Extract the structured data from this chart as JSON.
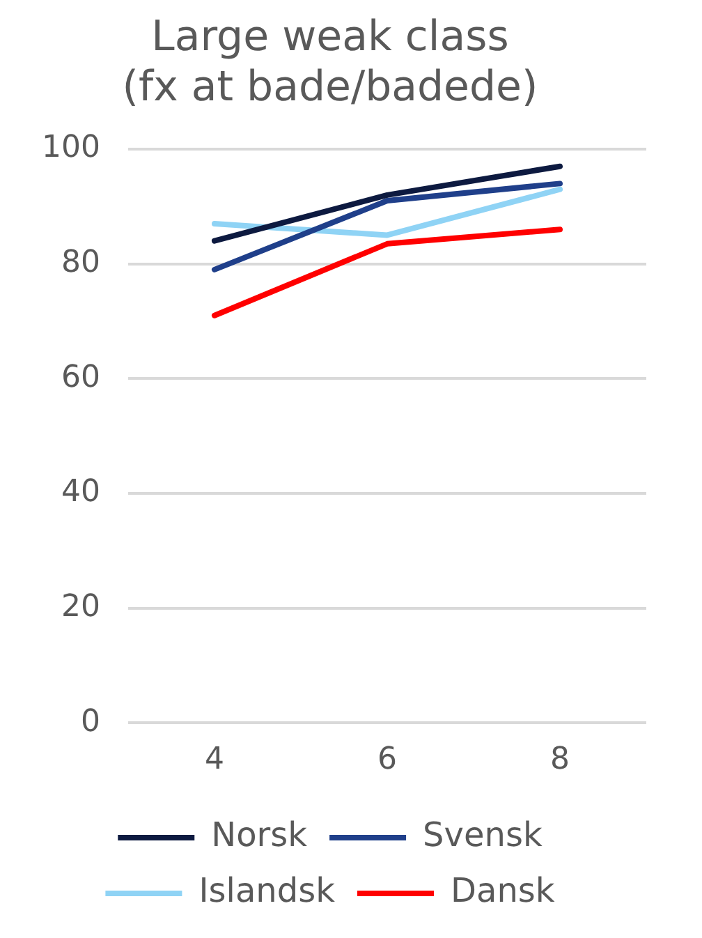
{
  "chart_data": {
    "type": "line",
    "title": [
      "Large weak class",
      "(fx at bade/badede)"
    ],
    "categories": [
      "4",
      "6",
      "8"
    ],
    "series": [
      {
        "name": "Norsk",
        "color": "#0d1a40",
        "values": [
          84,
          92,
          97
        ]
      },
      {
        "name": "Svensk",
        "color": "#1f3f8a",
        "values": [
          79,
          91,
          94
        ]
      },
      {
        "name": "Islandsk",
        "color": "#8fd3f5",
        "values": [
          87,
          85,
          93
        ]
      },
      {
        "name": "Dansk",
        "color": "#ff0000",
        "values": [
          71,
          83.5,
          86
        ]
      }
    ],
    "ylim": [
      0,
      100
    ],
    "yticks": [
      0,
      20,
      40,
      60,
      80,
      100
    ],
    "grid": "y",
    "legend": "bottom",
    "marker": "none",
    "line_style": "solid"
  }
}
